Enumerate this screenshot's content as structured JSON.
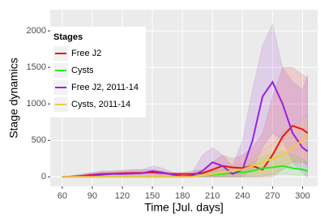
{
  "chart_data": {
    "type": "line",
    "x_label": "Time [Jul. days]",
    "y_label": "Stage dynamics",
    "x": [
      60,
      70,
      80,
      90,
      100,
      110,
      120,
      130,
      140,
      150,
      160,
      170,
      180,
      190,
      200,
      210,
      220,
      230,
      240,
      250,
      260,
      270,
      280,
      290,
      300,
      305
    ],
    "xlim": [
      48,
      315
    ],
    "xticks": [
      60,
      90,
      120,
      150,
      180,
      210,
      240,
      270,
      300
    ],
    "ylim": [
      -130,
      2290
    ],
    "yticks": [
      0,
      500,
      1000,
      1500,
      2000
    ],
    "grid": true,
    "legend_title": "Stages",
    "legend_position": "top-left",
    "series": [
      {
        "name": "Free J2",
        "color": "#ee1111",
        "values": [
          0,
          5,
          15,
          30,
          40,
          45,
          50,
          55,
          55,
          60,
          50,
          40,
          40,
          40,
          50,
          100,
          150,
          130,
          120,
          150,
          100,
          300,
          550,
          700,
          650,
          600
        ],
        "upper": [
          0,
          10,
          30,
          60,
          80,
          80,
          90,
          100,
          100,
          100,
          80,
          60,
          60,
          80,
          100,
          200,
          300,
          250,
          300,
          400,
          600,
          1100,
          1500,
          1500,
          1400,
          1350
        ],
        "lower": [
          0,
          0,
          0,
          0,
          0,
          0,
          0,
          0,
          0,
          0,
          0,
          0,
          0,
          0,
          0,
          0,
          0,
          0,
          0,
          0,
          0,
          0,
          100,
          200,
          200,
          150
        ]
      },
      {
        "name": "Cysts",
        "color": "#22ee22",
        "values": [
          0,
          0,
          0,
          0,
          0,
          0,
          0,
          0,
          0,
          0,
          0,
          0,
          0,
          10,
          20,
          30,
          40,
          50,
          60,
          80,
          120,
          130,
          150,
          120,
          100,
          80
        ],
        "upper": [
          0,
          0,
          0,
          0,
          0,
          0,
          0,
          0,
          0,
          0,
          0,
          0,
          0,
          30,
          50,
          80,
          100,
          120,
          150,
          200,
          280,
          320,
          350,
          300,
          250,
          200
        ],
        "lower": [
          0,
          0,
          0,
          0,
          0,
          0,
          0,
          0,
          0,
          0,
          0,
          0,
          0,
          0,
          0,
          0,
          0,
          0,
          0,
          0,
          20,
          30,
          40,
          30,
          20,
          10
        ]
      },
      {
        "name": "Free J2, 2011-14",
        "color": "#9922dd",
        "values": [
          0,
          5,
          10,
          20,
          30,
          40,
          40,
          45,
          50,
          80,
          60,
          30,
          10,
          20,
          80,
          200,
          150,
          40,
          100,
          500,
          1100,
          1300,
          1000,
          600,
          400,
          350
        ],
        "upper": [
          0,
          20,
          40,
          60,
          70,
          80,
          80,
          90,
          100,
          150,
          120,
          60,
          40,
          60,
          300,
          400,
          300,
          150,
          500,
          1200,
          1800,
          2100,
          1500,
          1300,
          1200,
          1400
        ],
        "lower": [
          0,
          0,
          0,
          0,
          0,
          0,
          0,
          0,
          0,
          0,
          0,
          0,
          0,
          0,
          0,
          0,
          0,
          0,
          0,
          100,
          400,
          600,
          500,
          200,
          50,
          0
        ]
      },
      {
        "name": "Cysts, 2011-14",
        "color": "#f5c842",
        "values": [
          0,
          0,
          0,
          0,
          0,
          0,
          0,
          0,
          0,
          0,
          0,
          0,
          0,
          0,
          20,
          40,
          60,
          80,
          100,
          150,
          200,
          250,
          300,
          400,
          500,
          550
        ],
        "upper": [
          0,
          0,
          0,
          0,
          0,
          0,
          0,
          0,
          0,
          0,
          0,
          0,
          0,
          0,
          50,
          80,
          120,
          150,
          180,
          250,
          350,
          450,
          600,
          700,
          800,
          850
        ],
        "lower": [
          0,
          0,
          0,
          0,
          0,
          0,
          0,
          0,
          0,
          0,
          0,
          0,
          0,
          0,
          0,
          0,
          0,
          0,
          0,
          0,
          0,
          50,
          100,
          150,
          200,
          200
        ]
      }
    ]
  }
}
